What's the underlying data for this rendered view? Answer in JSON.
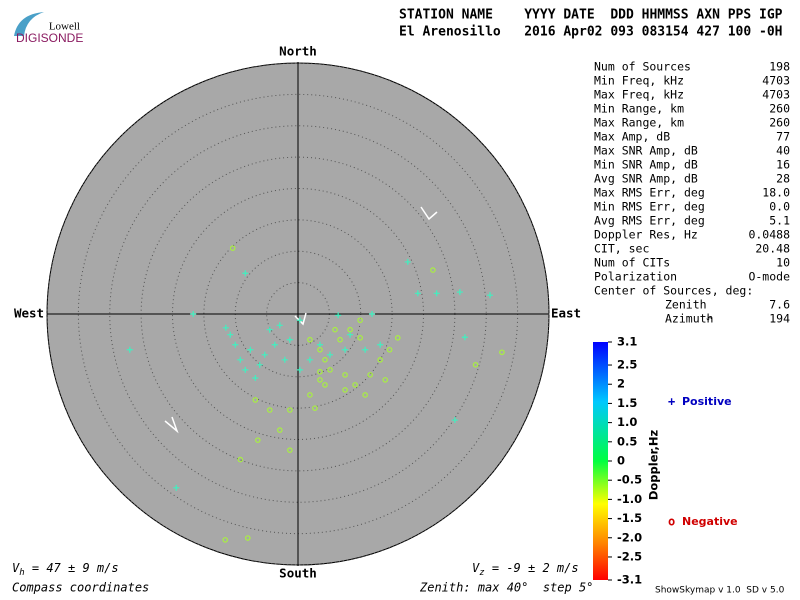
{
  "header": {
    "logo_top": "Lowell",
    "logo_bottom": "DIGISONDE",
    "columns_line": "STATION NAME    YYYY DATE  DDD HHMMSS AXN PPS IGP",
    "values_line": "El Arenosillo   2016 Apr02 093 083154 427 100 -0H"
  },
  "stats": {
    "rows": [
      [
        "Num of Sources",
        "198"
      ],
      [
        "Min Freq, kHz",
        "4703"
      ],
      [
        "Max Freq, kHz",
        "4703"
      ],
      [
        "Min Range, km",
        "260"
      ],
      [
        "Max Range, km",
        "260"
      ],
      [
        "Max Amp, dB",
        "77"
      ],
      [
        "Max SNR Amp, dB",
        "40"
      ],
      [
        "Min SNR Amp, dB",
        "16"
      ],
      [
        "Avg SNR Amp, dB",
        "28"
      ],
      [
        "Max RMS Err, deg",
        "18.0"
      ],
      [
        "Min RMS Err, deg",
        "0.0"
      ],
      [
        "Avg RMS Err, deg",
        "5.1"
      ],
      [
        "Doppler Res, Hz",
        "0.0488"
      ],
      [
        "CIT, sec",
        "20.48"
      ],
      [
        "Num of CITs",
        "10"
      ],
      [
        "Polarization",
        "O-mode"
      ]
    ],
    "center_title": "Center of Sources, deg:",
    "center_rows": [
      [
        "Zenith",
        "7.6"
      ],
      [
        "Azimuth",
        "194"
      ]
    ]
  },
  "footer": {
    "vh_symbol": "V",
    "vh_sub": "h",
    "vh_text": " = 47 ± 9 m/s",
    "vz_symbol": "V",
    "vz_sub": "z",
    "vz_text": " = -9 ± 2 m/s",
    "coords": "Compass coordinates",
    "zenith": "Zenith: max 40°  step 5°",
    "version": "ShowSkymap v 1.0  SD v 5.0"
  },
  "chart_data": {
    "type": "polar-scatter",
    "directions": {
      "north": "North",
      "south": "South",
      "east": "East",
      "west": "West"
    },
    "xlim": [
      -40,
      40
    ],
    "ylim": [
      -40,
      40
    ],
    "rticks": [
      5,
      10,
      15,
      20,
      25,
      30,
      35,
      40
    ],
    "series": [
      {
        "name": "Positive",
        "marker": "+",
        "color": "#40f0c0",
        "legend_color": "#0000c0",
        "x": [
          -8.4,
          -16.7,
          -11.5,
          -26.8,
          -19.4,
          -1.3,
          -4.5,
          -7.6,
          -8.4,
          -6.1,
          -3.7,
          -2.1,
          0.3,
          1.9,
          3.5,
          5.1,
          0.3,
          -2.9,
          -9.2,
          -6.8,
          -5.3,
          -10.0,
          25.0,
          26.6,
          19.1,
          22.1,
          25.8,
          30.6,
          17.5,
          11.8,
          8.3,
          7.5,
          6.4,
          10.7,
          13.1,
          -10.8
        ],
        "values": [
          6.5,
          0,
          -2.2,
          -5.7,
          -27.7,
          -4.1,
          -2.5,
          -5.7,
          -8.9,
          -8.1,
          -4.9,
          -7.3,
          -8.9,
          -7.3,
          -4.9,
          -6.5,
          -1.0,
          -1.8,
          -7.3,
          -10.2,
          -6.5,
          -4.9,
          -16.9,
          -3.7,
          3.3,
          3.3,
          3.5,
          3.0,
          8.3,
          0,
          -3.3,
          -5.7,
          -0.2,
          -5.7,
          -4.9,
          -3.3
        ]
      },
      {
        "name": "Negative",
        "marker": "o",
        "color": "#a8f040",
        "legend_color": "#d00000",
        "x": [
          -10.4,
          21.5,
          28.3,
          32.5,
          15.9,
          13.1,
          11.5,
          9.1,
          7.5,
          3.5,
          5.1,
          6.7,
          8.3,
          9.9,
          1.9,
          2.7,
          -1.3,
          -4.5,
          -6.8,
          -6.4,
          -9.2,
          -1.3,
          -11.6,
          -8.0,
          -2.9,
          4.3,
          10.7,
          5.9,
          3.5,
          4.3,
          1.9,
          13.9,
          7.5,
          3.5,
          9.9,
          14.6
        ],
        "values": [
          10.5,
          7.0,
          -8.1,
          -6.1,
          -3.8,
          -7.3,
          -9.7,
          -11.3,
          -12.1,
          -10.5,
          -8.9,
          -4.1,
          -2.5,
          -1.0,
          -12.9,
          -15.0,
          -15.3,
          -15.3,
          -13.7,
          -20.1,
          -23.2,
          -21.7,
          -36.0,
          -35.7,
          -18.5,
          -11.3,
          -12.9,
          -2.5,
          -5.7,
          -7.3,
          -4.1,
          -10.5,
          -9.7,
          -9.2,
          -3.8,
          -5.7
        ]
      }
    ],
    "colorbar": {
      "title": "Doppler,Hz",
      "lim": [
        -3.1,
        3.1
      ],
      "ticks": [
        3.1,
        2.5,
        2,
        1.5,
        {
          "value": 1,
          "label": "1.0"
        },
        0.5,
        0,
        -0.5,
        {
          "value": -1,
          "label": "-1.0"
        },
        -1.5,
        {
          "value": -2,
          "label": "-2.0"
        },
        -2.5,
        -3.1
      ]
    }
  }
}
